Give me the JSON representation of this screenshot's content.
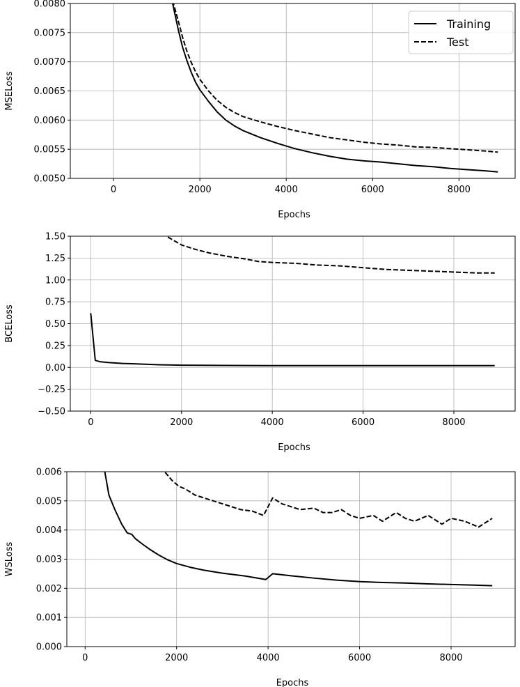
{
  "chart_data": [
    {
      "type": "line",
      "xlabel": "Epochs",
      "ylabel": "MSELoss",
      "xlim": [
        -1000,
        9300
      ],
      "ylim": [
        0.005,
        0.008
      ],
      "xticks": [
        0,
        2000,
        4000,
        6000,
        8000
      ],
      "xtick_labels": [
        "0",
        "2000",
        "4000",
        "6000",
        "8000"
      ],
      "yticks": [
        0.005,
        0.0055,
        0.006,
        0.0065,
        0.007,
        0.0075,
        0.008
      ],
      "ytick_labels": [
        "0.0050",
        "0.0055",
        "0.0060",
        "0.0065",
        "0.0070",
        "0.0075",
        "0.0080"
      ],
      "grid": true,
      "legend": "upper right",
      "series": [
        {
          "name": "Training",
          "style": "solid",
          "x": [
            1370,
            1500,
            1600,
            1700,
            1800,
            1900,
            2000,
            2200,
            2400,
            2600,
            2800,
            3000,
            3400,
            3800,
            4200,
            4600,
            5000,
            5400,
            5800,
            6200,
            6600,
            7000,
            7400,
            7800,
            8200,
            8600,
            8900
          ],
          "y": [
            0.008,
            0.00755,
            0.00725,
            0.00702,
            0.00682,
            0.00665,
            0.00652,
            0.00632,
            0.00614,
            0.006,
            0.0059,
            0.00582,
            0.0057,
            0.0056,
            0.00551,
            0.00544,
            0.00538,
            0.00533,
            0.0053,
            0.00528,
            0.00525,
            0.00522,
            0.0052,
            0.00517,
            0.00515,
            0.00513,
            0.00511
          ]
        },
        {
          "name": "Test",
          "style": "dashed",
          "x": [
            1370,
            1500,
            1600,
            1700,
            1800,
            1900,
            2000,
            2200,
            2400,
            2600,
            2800,
            3000,
            3400,
            3800,
            4200,
            4600,
            5000,
            5400,
            5800,
            6200,
            6600,
            7000,
            7400,
            7800,
            8200,
            8600,
            8900
          ],
          "y": [
            0.00805,
            0.0077,
            0.00742,
            0.00718,
            0.00699,
            0.00683,
            0.0067,
            0.0065,
            0.00634,
            0.00622,
            0.00613,
            0.00606,
            0.00597,
            0.00589,
            0.00582,
            0.00576,
            0.0057,
            0.00566,
            0.00562,
            0.00559,
            0.00557,
            0.00554,
            0.00553,
            0.00551,
            0.00549,
            0.00547,
            0.00545
          ]
        }
      ]
    },
    {
      "type": "line",
      "xlabel": "Epochs",
      "ylabel": "BCELoss",
      "xlim": [
        -450,
        9350
      ],
      "ylim": [
        -0.5,
        1.5
      ],
      "xticks": [
        0,
        2000,
        4000,
        6000,
        8000
      ],
      "xtick_labels": [
        "0",
        "2000",
        "4000",
        "6000",
        "8000"
      ],
      "yticks": [
        -0.5,
        -0.25,
        0,
        0.25,
        0.5,
        0.75,
        1.0,
        1.25,
        1.5
      ],
      "ytick_labels": [
        "−0.50",
        "−0.25",
        "0.00",
        "0.25",
        "0.50",
        "0.75",
        "1.00",
        "1.25",
        "1.50"
      ],
      "grid": true,
      "series": [
        {
          "name": "Training",
          "style": "solid",
          "x": [
            0,
            100,
            200,
            400,
            700,
            1000,
            1500,
            2000,
            3000,
            4000,
            5000,
            6000,
            7000,
            8000,
            8900
          ],
          "y": [
            0.62,
            0.08,
            0.065,
            0.055,
            0.045,
            0.04,
            0.03,
            0.025,
            0.022,
            0.02,
            0.02,
            0.02,
            0.02,
            0.02,
            0.02
          ]
        },
        {
          "name": "Test",
          "style": "dashed",
          "x": [
            1700,
            2000,
            2300,
            2600,
            3000,
            3400,
            3700,
            4000,
            4500,
            5000,
            5500,
            6000,
            6500,
            7000,
            7500,
            8000,
            8500,
            8900
          ],
          "y": [
            1.49,
            1.4,
            1.35,
            1.31,
            1.27,
            1.24,
            1.21,
            1.2,
            1.19,
            1.17,
            1.16,
            1.14,
            1.12,
            1.11,
            1.1,
            1.09,
            1.08,
            1.08
          ]
        }
      ]
    },
    {
      "type": "line",
      "xlabel": "Epochs",
      "ylabel": "WSLoss",
      "xlim": [
        -400,
        9400
      ],
      "ylim": [
        0.0,
        0.006
      ],
      "xticks": [
        0,
        2000,
        4000,
        6000,
        8000
      ],
      "xtick_labels": [
        "0",
        "2000",
        "4000",
        "6000",
        "8000"
      ],
      "yticks": [
        0.0,
        0.001,
        0.002,
        0.003,
        0.004,
        0.005,
        0.006
      ],
      "ytick_labels": [
        "0.000",
        "0.001",
        "0.002",
        "0.003",
        "0.004",
        "0.005",
        "0.006"
      ],
      "grid": true,
      "series": [
        {
          "name": "Training",
          "style": "solid",
          "x": [
            430,
            520,
            650,
            800,
            920,
            1020,
            1100,
            1250,
            1400,
            1600,
            1800,
            2000,
            2300,
            2600,
            3000,
            3500,
            3950,
            4100,
            4500,
            5000,
            5500,
            6000,
            6500,
            7000,
            7500,
            8000,
            8500,
            8900
          ],
          "y": [
            0.006,
            0.0052,
            0.0047,
            0.0042,
            0.0039,
            0.00385,
            0.0037,
            0.00352,
            0.00335,
            0.00315,
            0.00298,
            0.00285,
            0.00272,
            0.00262,
            0.00252,
            0.00242,
            0.0023,
            0.0025,
            0.00243,
            0.00235,
            0.00228,
            0.00223,
            0.0022,
            0.00218,
            0.00215,
            0.00213,
            0.00211,
            0.00209
          ]
        },
        {
          "name": "Test",
          "style": "dashed",
          "x": [
            1750,
            1900,
            2050,
            2200,
            2400,
            2600,
            2800,
            3000,
            3200,
            3400,
            3650,
            3900,
            4100,
            4300,
            4500,
            4700,
            5000,
            5200,
            5400,
            5600,
            5800,
            6000,
            6300,
            6500,
            6800,
            7000,
            7200,
            7500,
            7800,
            8000,
            8300,
            8600,
            8900
          ],
          "y": [
            0.00598,
            0.0057,
            0.0055,
            0.0054,
            0.0052,
            0.0051,
            0.005,
            0.0049,
            0.0048,
            0.0047,
            0.00465,
            0.0045,
            0.0051,
            0.0049,
            0.0048,
            0.0047,
            0.00475,
            0.0046,
            0.0046,
            0.0047,
            0.0045,
            0.0044,
            0.0045,
            0.0043,
            0.0046,
            0.0044,
            0.0043,
            0.0045,
            0.0042,
            0.0044,
            0.0043,
            0.0041,
            0.0044
          ]
        }
      ]
    }
  ]
}
